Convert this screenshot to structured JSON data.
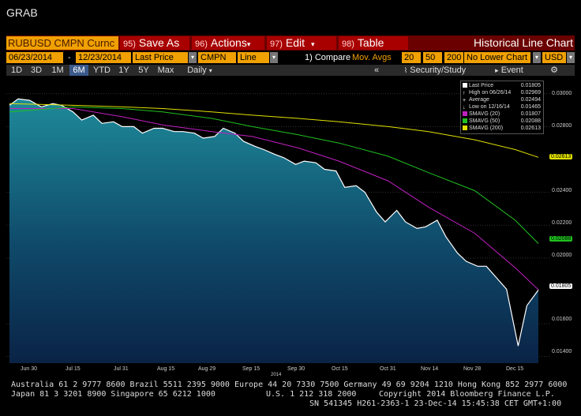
{
  "window_title": "GRAB",
  "toolbar": {
    "ticker": "RUBUSD CMPN Curnc",
    "save_num": "95)",
    "save_label": "Save As",
    "actions_num": "96)",
    "actions_label": "Actions",
    "edit_num": "97)",
    "edit_label": "Edit",
    "table_num": "98)",
    "table_label": "Table",
    "view_title": "Historical Line Chart"
  },
  "params": {
    "start_date": "06/23/2014",
    "dash": "-",
    "end_date": "12/23/2014",
    "field": "Last Price",
    "source": "CMPN",
    "style": "Line",
    "compare_label": "1) Compare",
    "compare_value": "Mov. Avgs",
    "ma1": "20",
    "ma2": "50",
    "ma3": "200",
    "lower_chart": "No Lower Chart",
    "currency": "USD"
  },
  "periods": [
    "1D",
    "3D",
    "1M",
    "6M",
    "YTD",
    "1Y",
    "5Y",
    "Max"
  ],
  "period_selected": "6M",
  "frequency": "Daily",
  "security_study": "Security/Study",
  "event": "Event",
  "legend": [
    {
      "label": "Last Price",
      "value": "0.01805",
      "color": "#ffffff"
    },
    {
      "label": "High on 06/26/14",
      "value": "0.02969",
      "color": "#ffffff"
    },
    {
      "label": "Average",
      "value": "0.02494",
      "color": "#ffffff"
    },
    {
      "label": "Low on 12/16/14",
      "value": "0.01465",
      "color": "#ffffff"
    },
    {
      "label": "SMAVG (20)",
      "value": "0.01807",
      "color": "#c020c0"
    },
    {
      "label": "SMAVG (50)",
      "value": "0.02088",
      "color": "#20c020"
    },
    {
      "label": "SMAVG (200)",
      "value": "0.02613",
      "color": "#e0e000"
    }
  ],
  "y_ticks": [
    "0.03000",
    "0.02800",
    "0.02400",
    "0.02200",
    "0.02000",
    "0.01600",
    "0.01400"
  ],
  "y_labels": [
    {
      "text": "0.02613",
      "color": "#e0e000"
    },
    {
      "text": "0.02088",
      "color": "#20c020"
    },
    {
      "text": "0.01805",
      "color": "#ffffff"
    }
  ],
  "x_ticks": [
    "Jun 30",
    "Jul 15",
    "Jul 31",
    "Aug 15",
    "Aug 29",
    "Sep 15",
    "Sep 30",
    "Oct 15",
    "Oct 31",
    "Nov 14",
    "Nov 28",
    "Dec 15"
  ],
  "x_year": "2014",
  "footer": {
    "line1": "Australia 61 2 9777 8600 Brazil 5511 2395 9000 Europe 44 20 7330 7500 Germany 49 69 9204 1210 Hong Kong 852 2977 6000",
    "line2_left": "Japan 81 3 3201 8900        Singapore 65 6212 1000",
    "line2_mid": "U.S. 1 212 318 2000",
    "line2_right": "Copyright 2014 Bloomberg Finance L.P.",
    "line3": "SN 541345 H261-2363-1 23-Dec-14 15:45:38 CET  GMT+1:00"
  },
  "chart_data": {
    "type": "line",
    "title": "",
    "ylim": [
      0.0136,
      0.031
    ],
    "x_range": [
      "2014-06-23",
      "2014-12-23"
    ],
    "series": [
      {
        "name": "Last Price",
        "color": "#ffffff",
        "x": [
          "2014-06-23",
          "2014-06-26",
          "2014-06-30",
          "2014-07-04",
          "2014-07-08",
          "2014-07-11",
          "2014-07-15",
          "2014-07-18",
          "2014-07-22",
          "2014-07-25",
          "2014-07-29",
          "2014-08-01",
          "2014-08-05",
          "2014-08-08",
          "2014-08-12",
          "2014-08-15",
          "2014-08-19",
          "2014-08-22",
          "2014-08-26",
          "2014-08-29",
          "2014-09-02",
          "2014-09-05",
          "2014-09-09",
          "2014-09-12",
          "2014-09-16",
          "2014-09-19",
          "2014-09-23",
          "2014-09-26",
          "2014-09-30",
          "2014-10-03",
          "2014-10-07",
          "2014-10-10",
          "2014-10-14",
          "2014-10-17",
          "2014-10-21",
          "2014-10-24",
          "2014-10-28",
          "2014-10-31",
          "2014-11-04",
          "2014-11-07",
          "2014-11-11",
          "2014-11-14",
          "2014-11-18",
          "2014-11-21",
          "2014-11-25",
          "2014-11-28",
          "2014-12-02",
          "2014-12-05",
          "2014-12-09",
          "2014-12-12",
          "2014-12-16",
          "2014-12-19",
          "2014-12-23"
        ],
        "y": [
          0.0293,
          0.02969,
          0.0296,
          0.0292,
          0.0294,
          0.0293,
          0.0289,
          0.0284,
          0.0287,
          0.0282,
          0.0283,
          0.028,
          0.028,
          0.0276,
          0.0279,
          0.0279,
          0.0277,
          0.0277,
          0.0276,
          0.0273,
          0.0274,
          0.0279,
          0.0276,
          0.0271,
          0.0268,
          0.0266,
          0.0263,
          0.0261,
          0.0257,
          0.0259,
          0.0258,
          0.0254,
          0.0253,
          0.0243,
          0.0244,
          0.024,
          0.0228,
          0.0222,
          0.0229,
          0.0222,
          0.0218,
          0.0219,
          0.0223,
          0.0213,
          0.0203,
          0.0198,
          0.0195,
          0.0195,
          0.0187,
          0.0181,
          0.01465,
          0.0171,
          0.01805
        ]
      },
      {
        "name": "SMAVG (20)",
        "color": "#c020c0",
        "x": [
          "2014-06-23",
          "2014-07-15",
          "2014-08-01",
          "2014-08-15",
          "2014-09-01",
          "2014-09-15",
          "2014-10-01",
          "2014-10-15",
          "2014-11-01",
          "2014-11-15",
          "2014-12-01",
          "2014-12-15",
          "2014-12-23"
        ],
        "y": [
          0.0291,
          0.0291,
          0.0286,
          0.0281,
          0.0277,
          0.0274,
          0.0267,
          0.0259,
          0.0247,
          0.0231,
          0.0215,
          0.0194,
          0.01807
        ]
      },
      {
        "name": "SMAVG (50)",
        "color": "#20c020",
        "x": [
          "2014-06-23",
          "2014-07-15",
          "2014-08-01",
          "2014-08-15",
          "2014-09-01",
          "2014-09-15",
          "2014-10-01",
          "2014-10-15",
          "2014-11-01",
          "2014-11-15",
          "2014-12-01",
          "2014-12-15",
          "2014-12-23"
        ],
        "y": [
          0.0289,
          0.0292,
          0.0291,
          0.0289,
          0.0285,
          0.028,
          0.0275,
          0.027,
          0.0262,
          0.0252,
          0.0241,
          0.0223,
          0.02088
        ]
      },
      {
        "name": "SMAVG (200)",
        "color": "#e0e000",
        "x": [
          "2014-06-23",
          "2014-07-15",
          "2014-08-01",
          "2014-08-15",
          "2014-09-01",
          "2014-09-15",
          "2014-10-01",
          "2014-10-15",
          "2014-11-01",
          "2014-11-15",
          "2014-12-01",
          "2014-12-15",
          "2014-12-23"
        ],
        "y": [
          0.0294,
          0.0293,
          0.0292,
          0.0291,
          0.0289,
          0.0287,
          0.0285,
          0.0283,
          0.028,
          0.0277,
          0.0272,
          0.0266,
          0.02613
        ]
      }
    ]
  }
}
